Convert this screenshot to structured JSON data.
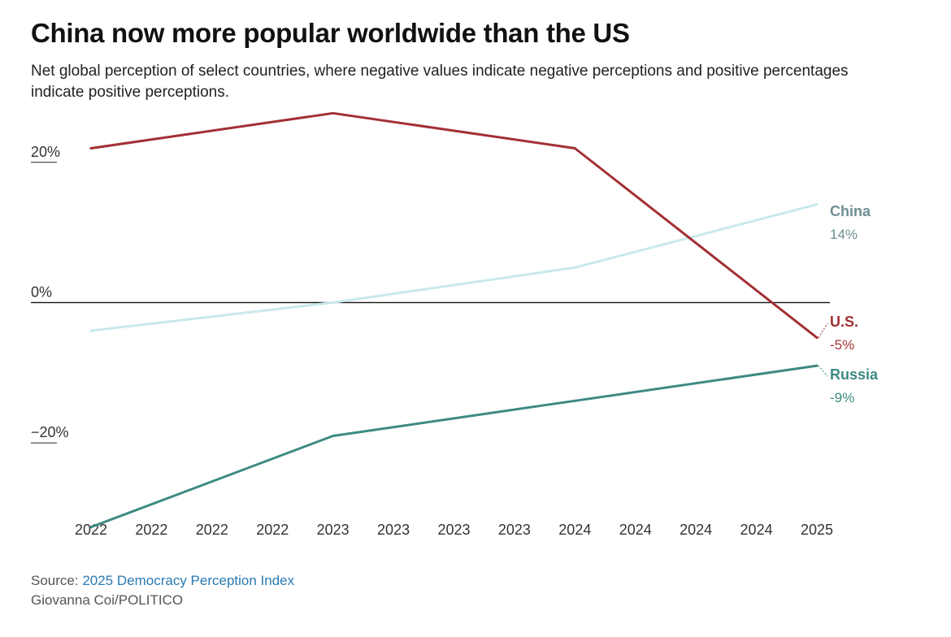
{
  "title": "China now more popular worldwide than the US",
  "subtitle": "Net global perception of select countries, where negative values indicate negative perceptions and positive percentages indicate positive perceptions.",
  "footer": {
    "source_prefix": "Source: ",
    "source_link": "2025 Democracy Perception Index",
    "credit": "Giovanna Coi/POLITICO"
  },
  "colors": {
    "us": "#a33034",
    "china": "#c9e9ec",
    "china_label": "#6f8e92",
    "russia": "#3d8a84",
    "zero_line": "#111111"
  },
  "chart_data": {
    "type": "line",
    "x": [
      "2022",
      "2022",
      "2022",
      "2022",
      "2023",
      "2023",
      "2023",
      "2023",
      "2024",
      "2024",
      "2024",
      "2024",
      "2025"
    ],
    "y_ticks": [
      {
        "value": 20,
        "label": "20%"
      },
      {
        "value": 0,
        "label": "0%"
      },
      {
        "value": -20,
        "label": "−20%"
      }
    ],
    "ylim": [
      -32.5,
      27.5
    ],
    "series": [
      {
        "key": "us",
        "name": "U.S.",
        "end_label": "-5%",
        "points": [
          {
            "index": 0,
            "value": 22
          },
          {
            "index": 4,
            "value": 27
          },
          {
            "index": 8,
            "value": 22
          },
          {
            "index": 12,
            "value": -5
          }
        ]
      },
      {
        "key": "china",
        "name": "China",
        "end_label": "14%",
        "points": [
          {
            "index": 0,
            "value": -4
          },
          {
            "index": 4,
            "value": 0
          },
          {
            "index": 8,
            "value": 5
          },
          {
            "index": 12,
            "value": 14
          }
        ]
      },
      {
        "key": "russia",
        "name": "Russia",
        "end_label": "-9%",
        "points": [
          {
            "index": 0,
            "value": -32
          },
          {
            "index": 4,
            "value": -19
          },
          {
            "index": 8,
            "value": -14
          },
          {
            "index": 12,
            "value": -9
          }
        ]
      }
    ],
    "xlabel": "",
    "ylabel": "",
    "grid": false,
    "legend": "direct labels at line ends (right)"
  }
}
